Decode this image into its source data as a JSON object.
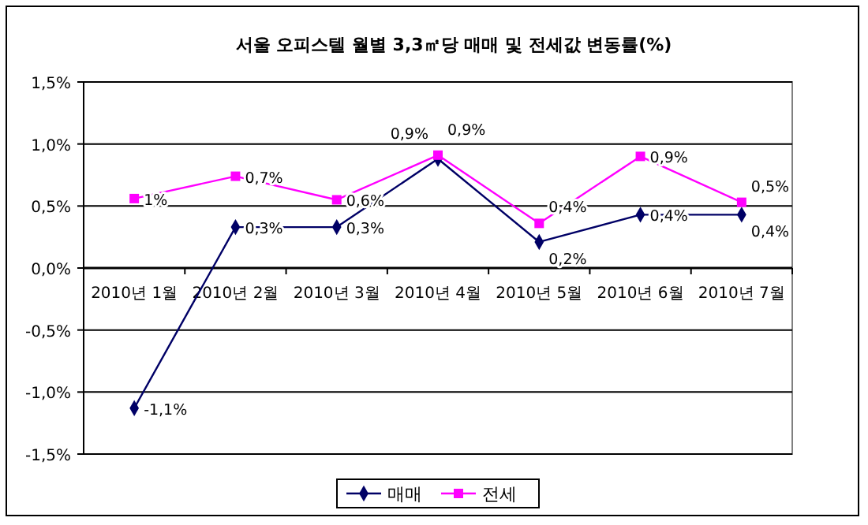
{
  "chart_data": {
    "type": "line",
    "title": "서울 오피스텔 월별 3,3㎡당 매매 및 전세값 변동률(%)",
    "categories": [
      "2010년 1월",
      "2010년 2월",
      "2010년 3월",
      "2010년 4월",
      "2010년 5월",
      "2010년 6월",
      "2010년 7월"
    ],
    "series": [
      {
        "name": "매매",
        "color": "#000066",
        "marker": "diamond",
        "values": [
          -1.13,
          0.33,
          0.33,
          0.88,
          0.21,
          0.43,
          0.43
        ],
        "value_labels": [
          "-1,1%",
          "0,3%",
          "0,3%",
          "0,9%",
          "0,2%",
          "0,4%",
          "0,4%"
        ]
      },
      {
        "name": "전세",
        "color": "#ff00ff",
        "marker": "square",
        "values": [
          0.56,
          0.74,
          0.55,
          0.91,
          0.36,
          0.9,
          0.53
        ],
        "value_labels": [
          "1%",
          "0,7%",
          "0,6%",
          "0,9%",
          "0,4%",
          "0,9%",
          "0,5%"
        ]
      }
    ],
    "ylim": [
      -1.5,
      1.5
    ],
    "yticks": [
      {
        "value": -1.5,
        "label": "-1,5%"
      },
      {
        "value": -1,
        "label": "-1,0%"
      },
      {
        "value": -0.5,
        "label": "-0,5%"
      },
      {
        "value": 0,
        "label": "0,0%"
      },
      {
        "value": 0.5,
        "label": "0,5%"
      },
      {
        "value": 1,
        "label": "1,0%"
      },
      {
        "value": 1.5,
        "label": "1,5%"
      }
    ],
    "grid": "y",
    "legend": "bottom"
  }
}
